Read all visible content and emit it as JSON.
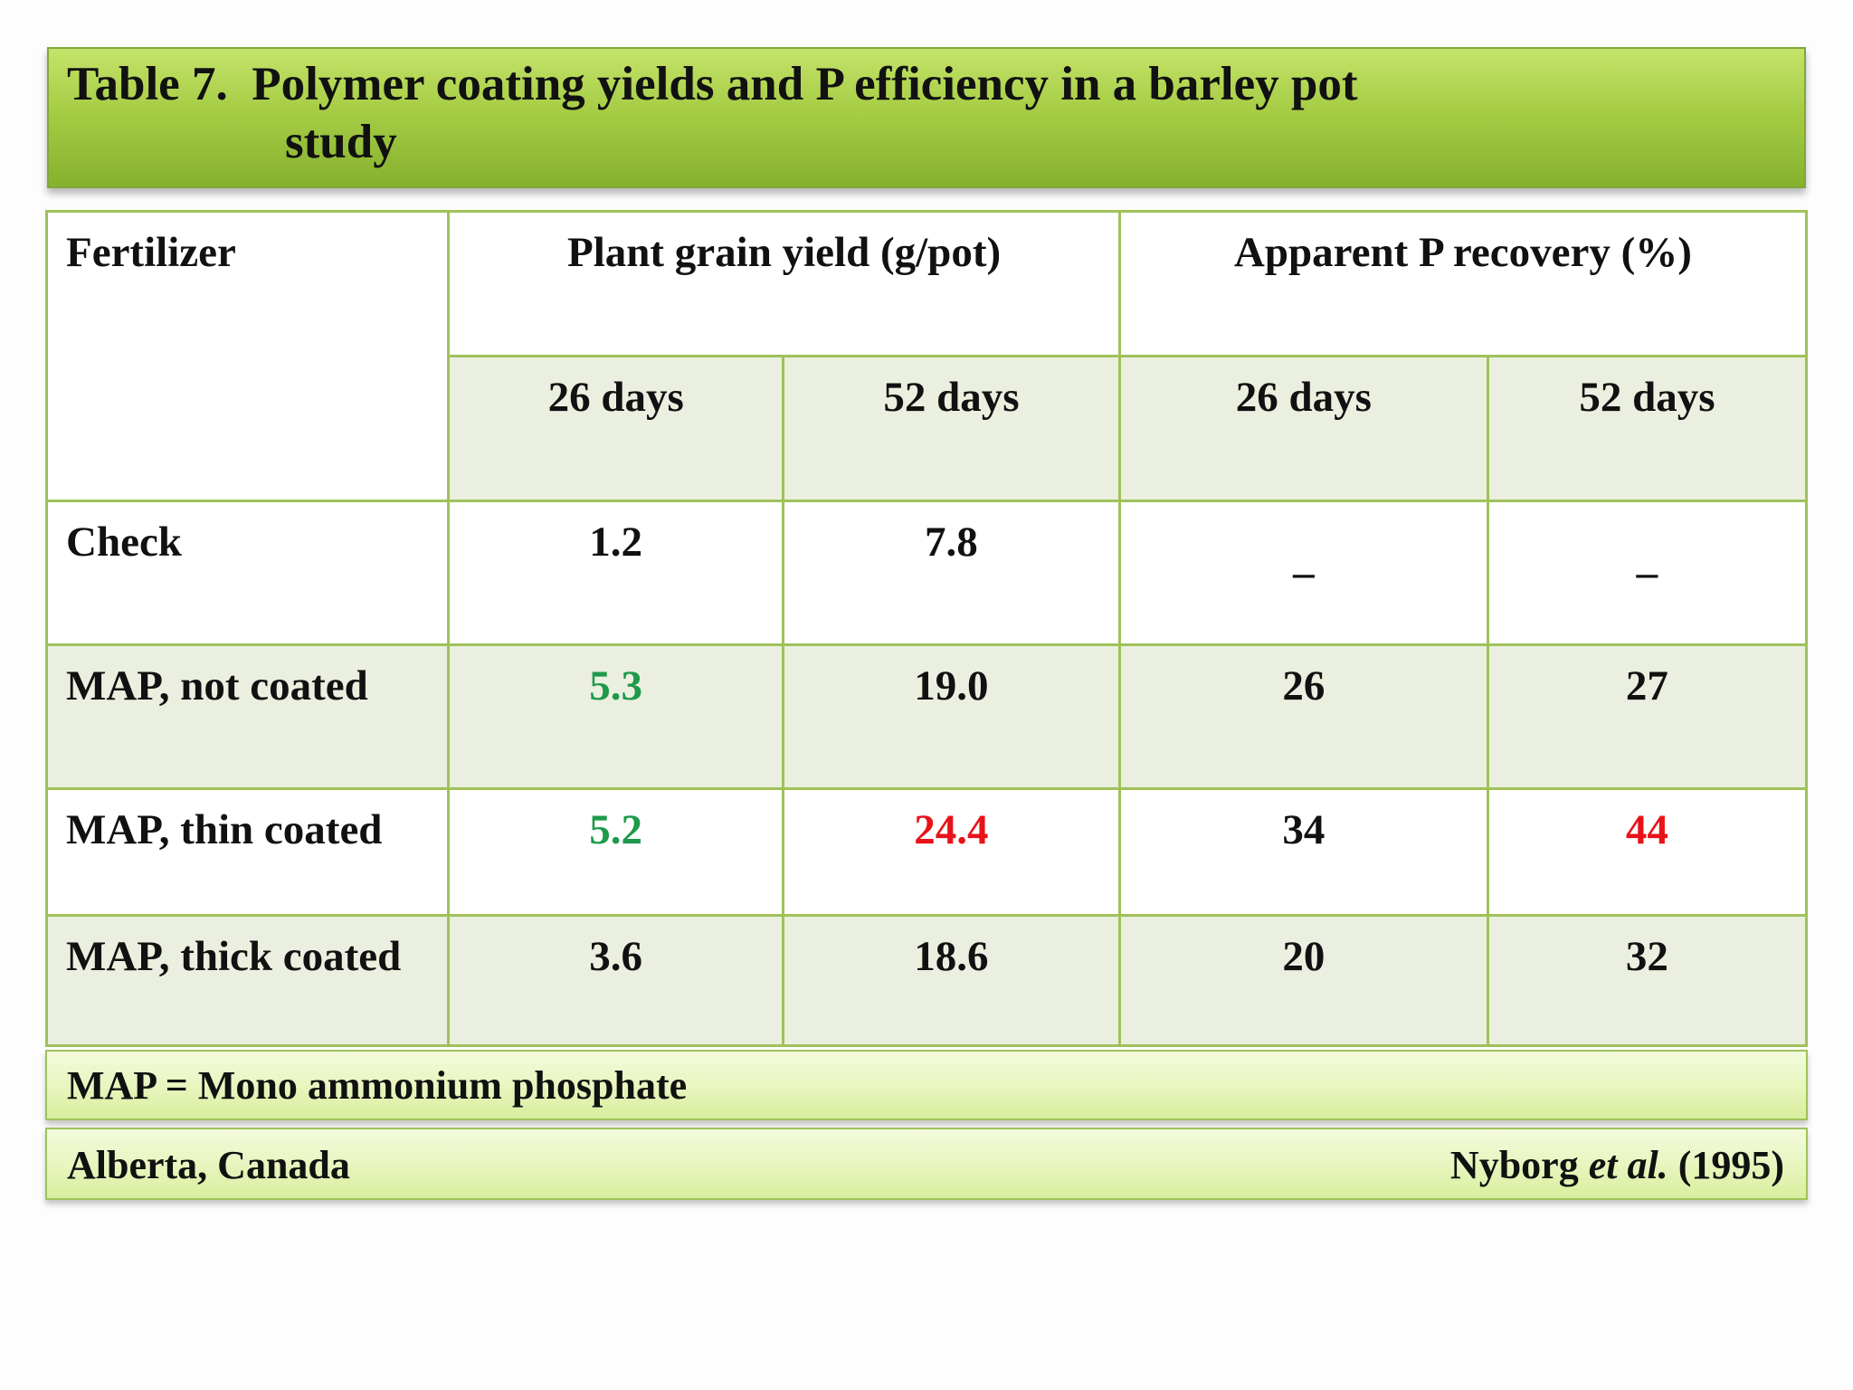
{
  "title": {
    "line1": "Table 7.  Polymer coating yields and P efficiency in a barley pot",
    "line2": "study"
  },
  "table": {
    "header": {
      "fertilizer": "Fertilizer",
      "yield_group": "Plant  grain yield (g/pot)",
      "recovery_group": "Apparent P recovery (%)"
    },
    "subheaders": [
      "26 days",
      "52 days",
      "26 days",
      "52 days"
    ],
    "rows": [
      {
        "fertilizer": "Check",
        "yield_26": "1.2",
        "yield_52": "7.8",
        "recovery_26": "_",
        "recovery_52": "_"
      },
      {
        "fertilizer": "MAP, not coated",
        "yield_26": "5.3",
        "yield_52": "19.0",
        "recovery_26": "26",
        "recovery_52": "27"
      },
      {
        "fertilizer": "MAP, thin coated",
        "yield_26": "5.2",
        "yield_52": "24.4",
        "recovery_26": "34",
        "recovery_52": "44"
      },
      {
        "fertilizer": "MAP, thick coated",
        "yield_26": "3.6",
        "yield_52": "18.6",
        "recovery_26": "20",
        "recovery_52": "32"
      }
    ]
  },
  "colors": {
    "highlight_green": "#1e9a4a",
    "highlight_red": "#e8121a",
    "title_bar": "#9cc63e",
    "border": "#9fc25a"
  },
  "footnote": "MAP = Mono ammonium phosphate",
  "footer": {
    "location": "Alberta, Canada",
    "citation_author": "Nyborg ",
    "citation_etal": "et al.",
    "citation_year": " (1995)"
  }
}
